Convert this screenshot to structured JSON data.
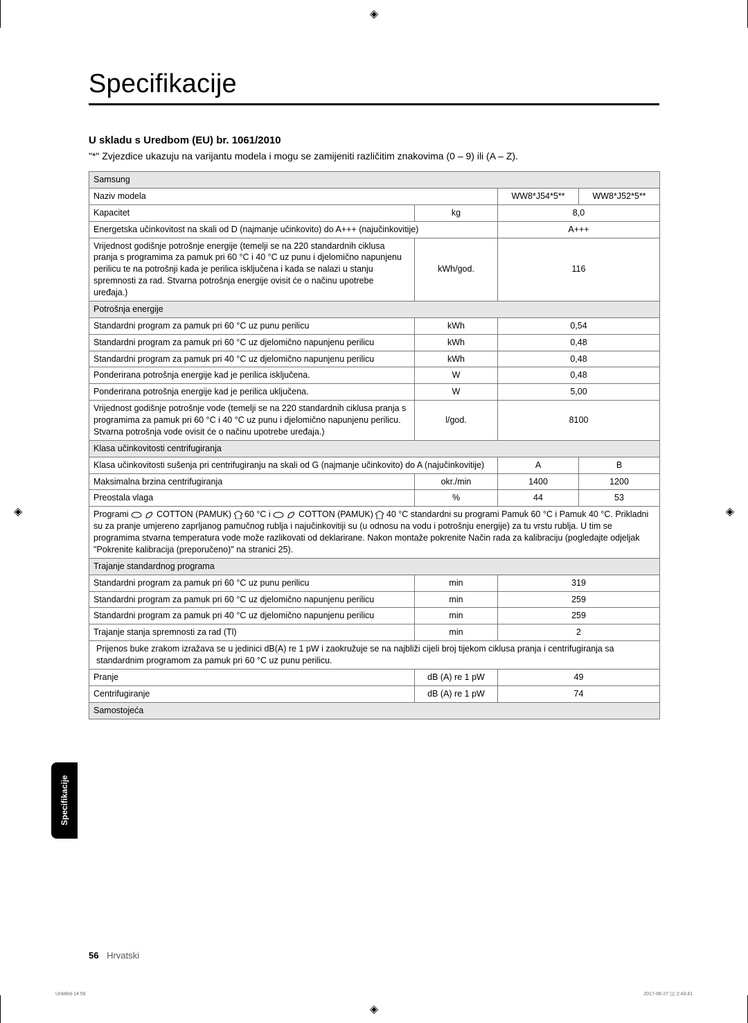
{
  "print_marks": {
    "reg_glyph": "◈"
  },
  "title": "Specifikacije",
  "subtitle": "U skladu s Uredbom (EU) br. 1061/2010",
  "note": "\"*\" Zvjezdice ukazuju na varijantu modela i mogu se zamijeniti različitim znakovima (0 – 9) ili (A – Z).",
  "brand_row": "Samsung",
  "rows": {
    "model_label": "Naziv modela",
    "model_a": "WW8*J54*5**",
    "model_b": "WW8*J52*5**",
    "capacity_label": "Kapacitet",
    "capacity_unit": "kg",
    "capacity_val": "8,0",
    "eff_label": "Energetska učinkovitost na skali od D (najmanje učinkovito) do A+++ (najučinkovitije)",
    "eff_val": "A+++",
    "annual_energy_label": "Vrijednost godišnje potrošnje energije (temelji se na 220 standardnih ciklusa pranja s programima za pamuk pri 60 °C i 40 °C uz punu i djelomično napunjenu perilicu te na potrošnji kada je perilica isključena i kada se nalazi u stanju spremnosti za rad. Stvarna potrošnja energije ovisit će o načinu upotrebe uređaja.)",
    "annual_energy_unit": "kWh/god.",
    "annual_energy_val": "116",
    "energy_hdr": "Potrošnja energije",
    "e60full_label": "Standardni program za pamuk pri 60 °C uz punu perilicu",
    "e60full_unit": "kWh",
    "e60full_val": "0,54",
    "e60part_label": "Standardni program za pamuk pri 60 °C uz djelomično napunjenu perilicu",
    "e60part_unit": "kWh",
    "e60part_val": "0,48",
    "e40part_label": "Standardni program za pamuk pri 40 °C uz djelomično napunjenu perilicu",
    "e40part_unit": "kWh",
    "e40part_val": "0,48",
    "off_label": "Ponderirana potrošnja energije kad je perilica isključena.",
    "off_unit": "W",
    "off_val": "0,48",
    "on_label": "Ponderirana potrošnja energije kad je perilica uključena.",
    "on_unit": "W",
    "on_val": "5,00",
    "water_label": "Vrijednost godišnje potrošnje vode (temelji se na 220 standardnih ciklusa pranja s programima za pamuk pri 60 °C i 40 °C uz punu i djelomično napunjenu perilicu. Stvarna potrošnja vode ovisit će o načinu upotrebe uređaja.)",
    "water_unit": "l/god.",
    "water_val": "8100",
    "spin_hdr": "Klasa učinkovitosti centrifugiranja",
    "spin_class_label": "Klasa učinkovitosti sušenja pri centrifugiranju na skali od G (najmanje učinkovito) do A (najučinkovitije)",
    "spin_class_a": "A",
    "spin_class_b": "B",
    "max_spin_label": "Maksimalna brzina centrifugiranja",
    "max_spin_unit": "okr./min",
    "max_spin_a": "1400",
    "max_spin_b": "1200",
    "moist_label": "Preostala vlaga",
    "moist_unit": "%",
    "moist_a": "44",
    "moist_b": "53",
    "prog_note_pre": "Programi ",
    "cotton_label": " COTTON (PAMUK) ",
    "prog_note_mid1": " 60 °C i ",
    "prog_note_mid2": " 40 °C standardni su programi Pamuk 60 °C i Pamuk 40 °C. Prikladni su za pranje umjereno zaprljanog pamučnog rublja i najučinkovitiji su (u odnosu na vodu i potrošnju energije) za tu vrstu rublja. U tim se programima stvarna temperatura vode može razlikovati od deklarirane. Nakon montaže pokrenite Način rada za kalibraciju (pogledajte odjeljak \"",
    "prog_note_bold": "Pokrenite kalibracija (preporučeno)",
    "prog_note_end": "\" na stranici 25).",
    "dur_hdr": "Trajanje standardnog programa",
    "d60full_label": "Standardni program za pamuk pri 60 °C uz punu perilicu",
    "d60full_unit": "min",
    "d60full_val": "319",
    "d60part_label": "Standardni program za pamuk pri 60 °C uz djelomično napunjenu perilicu",
    "d60part_unit": "min",
    "d60part_val": "259",
    "d40part_label": "Standardni program za pamuk pri 40 °C uz djelomično napunjenu perilicu",
    "d40part_unit": "min",
    "d40part_val": "259",
    "ready_label": "Trajanje stanja spremnosti za rad (Tl)",
    "ready_unit": "min",
    "ready_val": "2",
    "noise_note": "Prijenos buke zrakom izražava se u jedinici dB(A) re 1 pW i zaokružuje se na najbliži cijeli broj tijekom ciklusa pranja i centrifugiranja sa standardnim programom za pamuk pri 60 °C uz punu perilicu.",
    "wash_label": "Pranje",
    "wash_unit": "dB (A) re 1 pW",
    "wash_val": "49",
    "spin_label": "Centrifugiranje",
    "spin_unit": "dB (A) re 1 pW",
    "spin_val": "74",
    "free_label": "Samostojeća"
  },
  "side_tab": "Specifikacije",
  "footer": {
    "page": "56",
    "lang": "Hrvatski"
  },
  "micro": {
    "left": "Untitled-14   56",
    "right": "2017-06-27   ▯▯ 2:43:41"
  },
  "colors": {
    "border": "#777777",
    "header_bg": "#e6e6e6",
    "tab_bg": "#000000"
  }
}
